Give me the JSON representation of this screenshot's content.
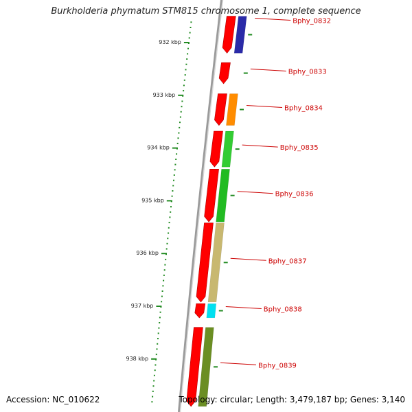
{
  "header": {
    "title": "Burkholderia phymatum STM815 chromosome 1, complete sequence"
  },
  "footer": {
    "accession": "Accession: NC_010622",
    "topology": "Topology: circular; Length: 3,479,187 bp; Genes: 3,140"
  },
  "colors": {
    "backbone": "#9a9a9a",
    "cds": "#ff0000",
    "label": "#cc0000",
    "tick": "#228b22"
  },
  "scale": {
    "unit": "kbp",
    "labeled_ticks": [
      {
        "kbp": 932,
        "label": "932 kbp"
      },
      {
        "kbp": 933,
        "label": "933 kbp"
      },
      {
        "kbp": 934,
        "label": "934 kbp"
      },
      {
        "kbp": 935,
        "label": "935 kbp"
      },
      {
        "kbp": 936,
        "label": "936 kbp"
      },
      {
        "kbp": 937,
        "label": "937 kbp"
      },
      {
        "kbp": 938,
        "label": "938 kbp"
      }
    ]
  },
  "genes": [
    {
      "id": "Bphy_0832",
      "start_kbp": 931.5,
      "end_kbp": 932.2,
      "category_color": "#2a2aa8"
    },
    {
      "id": "Bphy_0833",
      "start_kbp": 932.38,
      "end_kbp": 932.78,
      "category_color": null
    },
    {
      "id": "Bphy_0834",
      "start_kbp": 932.97,
      "end_kbp": 933.57,
      "category_color": "#ff8c00"
    },
    {
      "id": "Bphy_0835",
      "start_kbp": 933.68,
      "end_kbp": 934.36,
      "category_color": "#33cc33"
    },
    {
      "id": "Bphy_0836",
      "start_kbp": 934.4,
      "end_kbp": 935.4,
      "category_color": "#22bb22"
    },
    {
      "id": "Bphy_0837",
      "start_kbp": 935.42,
      "end_kbp": 936.92,
      "category_color": "#c8b870"
    },
    {
      "id": "Bphy_0838",
      "start_kbp": 936.95,
      "end_kbp": 937.22,
      "category_color": "#00e0f0"
    },
    {
      "id": "Bphy_0839",
      "start_kbp": 937.4,
      "end_kbp": 938.9,
      "category_color": "#6b8e23"
    }
  ]
}
